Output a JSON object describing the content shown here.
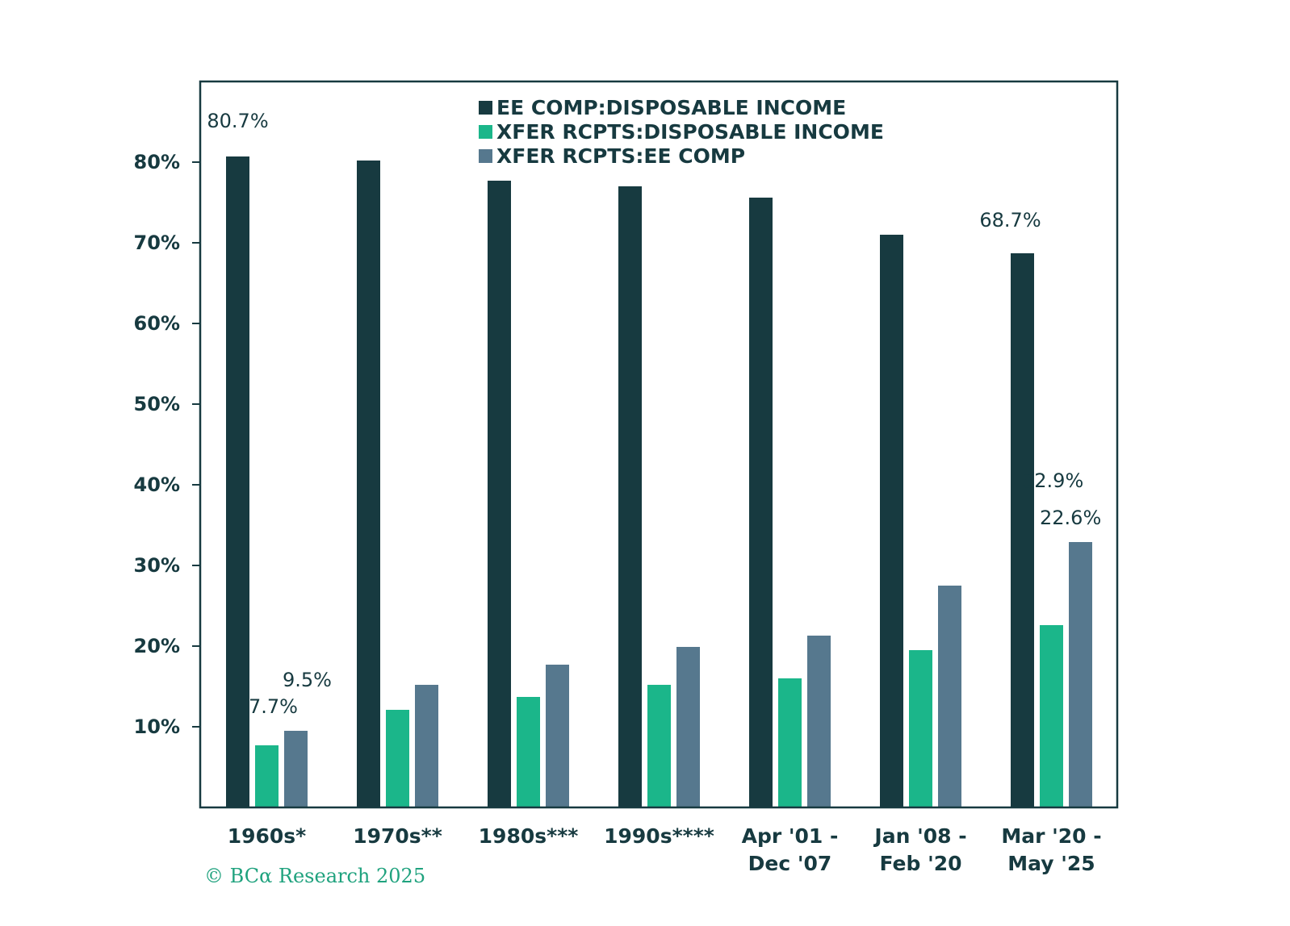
{
  "chart_data": {
    "type": "bar",
    "categories": [
      [
        "1960s*"
      ],
      [
        "1970s**"
      ],
      [
        "1980s***"
      ],
      [
        "1990s****"
      ],
      [
        "Apr '01 -",
        "Dec '07"
      ],
      [
        "Jan '08 -",
        "Feb '20"
      ],
      [
        "Mar '20 -",
        "May '25"
      ]
    ],
    "series": [
      {
        "name": "EE COMP:DISPOSABLE INCOME",
        "color": "#173a40",
        "values": [
          80.7,
          80.2,
          77.7,
          77.0,
          75.6,
          71.0,
          68.7
        ]
      },
      {
        "name": "XFER RCPTS:DISPOSABLE INCOME",
        "color": "#1bb68a",
        "values": [
          7.7,
          12.1,
          13.7,
          15.2,
          16.0,
          19.5,
          22.6
        ]
      },
      {
        "name": "XFER RCPTS:EE COMP",
        "color": "#56788e",
        "values": [
          9.5,
          15.2,
          17.7,
          19.9,
          21.3,
          27.5,
          32.9
        ]
      }
    ],
    "yticks": [
      10,
      20,
      30,
      40,
      50,
      60,
      70,
      80
    ],
    "ytick_format": "%",
    "ylim": [
      0,
      90
    ],
    "annotations": [
      {
        "text": "80.7%",
        "series": 0,
        "category": 0
      },
      {
        "text": "7.7%",
        "series": 1,
        "category": 0
      },
      {
        "text": "9.5%",
        "series": 2,
        "category": 0
      },
      {
        "text": "68.7%",
        "series": 0,
        "category": 6
      },
      {
        "text": "22.6%",
        "series": 1,
        "category": 6
      },
      {
        "text": "32.9%",
        "series": 2,
        "category": 6
      }
    ],
    "legend_position": "top-center",
    "grid": false
  },
  "source": "© BCα Research 2025"
}
